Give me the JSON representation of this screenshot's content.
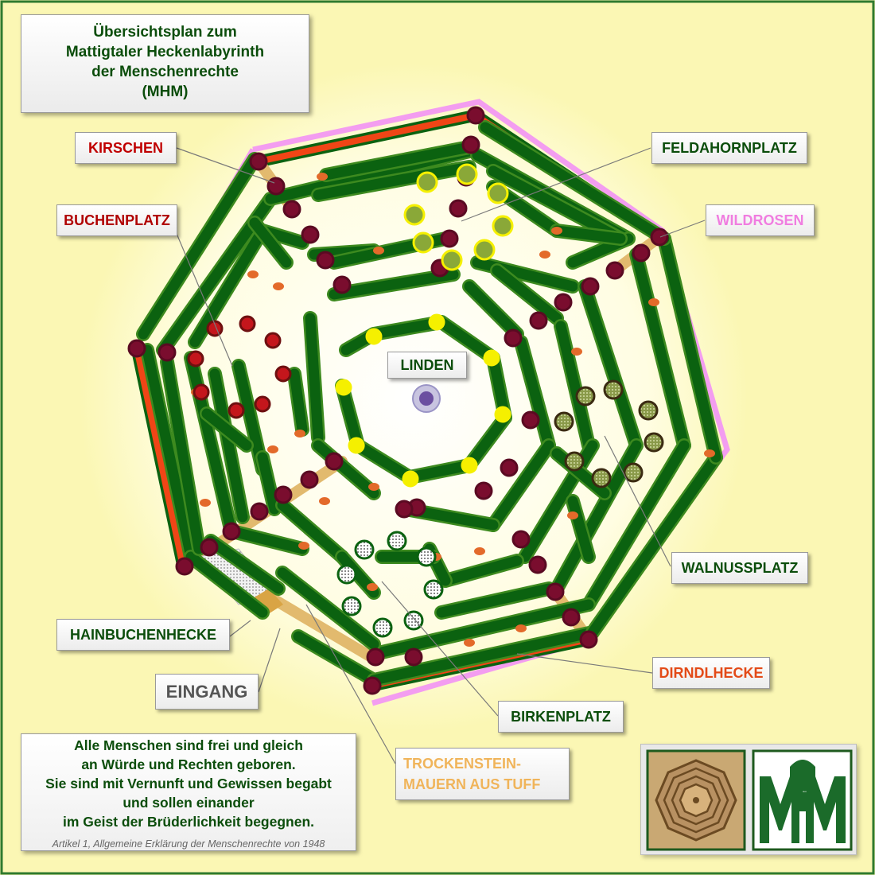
{
  "title": {
    "line1": "Übersichtsplan zum",
    "line2": "Mattigtaler Heckenlabyrinth",
    "line3": "der Menschenrechte",
    "line4": "(MHM)"
  },
  "labels": {
    "kirschen": "KIRSCHEN",
    "buchenplatz": "BUCHENPLATZ",
    "feldahornplatz": "FELDAHORNPLATZ",
    "wildrosen": "WILDROSEN",
    "linden": "LINDEN",
    "walnussplatz": "WALNUSSPLATZ",
    "hainbuchenhecke": "HAINBUCHENHECKE",
    "eingang": "EINGANG",
    "dirndlhecke": "DIRNDLHECKE",
    "birkenplatz": "BIRKENPLATZ",
    "trockenstein_1": "TROCKENSTEIN-",
    "trockenstein_2": "MAUERN AUS TUFF"
  },
  "quote": {
    "line1": "Alle Menschen sind frei und gleich",
    "line2": "an Würde und Rechten geboren.",
    "line3": "Sie sind mit Vernunft und Gewissen begabt",
    "line4": "und sollen einander",
    "line5": "im Geist der Brüderlichkeit begegnen.",
    "source": "Artikel 1, Allgemeine Erklärung der Menschenrechte von 1948"
  },
  "logo": {
    "letters": "MHM"
  },
  "colors": {
    "background": "#fbf7b4",
    "glow": "#fffde6",
    "frame": "#2f7a2f",
    "hedge": "#0b6210",
    "hedge_edge": "#3d8a1f",
    "tree": "#7a0d2e",
    "tree_red": "#c4161c",
    "tree_yellow": "#f5f000",
    "birch": "#ffffff",
    "walnut": "#3b2b12",
    "wall": "#e2ba6e",
    "wildrose": "#f39df0",
    "dirndl": "#f04516",
    "kirschen_text": "#c00000",
    "wildrosen_text": "#f07de0",
    "dirndl_text": "#e34a17",
    "trockenstein_text": "#f0b45a",
    "eingang_text": "#555555",
    "green_text": "#0b4d0b",
    "linden_disc": "#6b4fa0"
  },
  "legend_icons": [
    "kirsche-tree-icon",
    "buche-tree-icon",
    "feldahorn-tree-icon",
    "walnuss-tree-icon",
    "birke-tree-icon",
    "linde-tree-icon"
  ]
}
